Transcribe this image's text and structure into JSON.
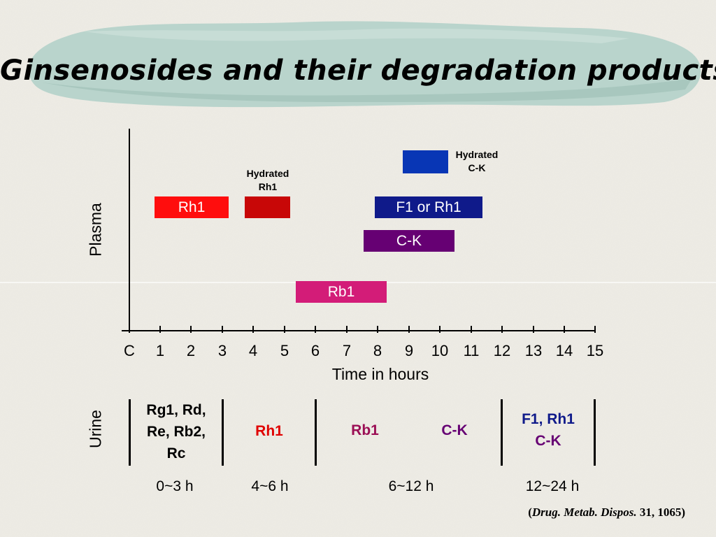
{
  "title": "Ginsenosides and their degradation products",
  "plasma_axis_label": "Plasma",
  "x_axis_label": "Time in hours",
  "x_ticks": [
    "C",
    "1",
    "2",
    "3",
    "4",
    "5",
    "6",
    "7",
    "8",
    "9",
    "10",
    "11",
    "12",
    "13",
    "14",
    "15"
  ],
  "plasma_bars": [
    {
      "label": "Rh1",
      "color": "#ff0d0d"
    },
    {
      "label": "",
      "color": "#c80707"
    },
    {
      "label": "F1 or Rh1",
      "color": "#0f1a8a"
    },
    {
      "label": "C-K",
      "color": "#660073"
    },
    {
      "label": "Rb1",
      "color": "#d31c78"
    },
    {
      "label": "",
      "color": "#0836b5"
    }
  ],
  "annotations": {
    "hydrated_rh1": [
      "Hydrated",
      "Rh1"
    ],
    "hydrated_ck": [
      "Hydrated",
      "C-K"
    ]
  },
  "urine": {
    "axis_label": "Urine",
    "period1": {
      "lines": [
        "Rg1, Rd,",
        "Re, Rb2,",
        "Rc"
      ],
      "color": "#000000"
    },
    "period2": {
      "text": "Rh1",
      "color": "#e00000"
    },
    "period3a": {
      "text": "Rb1",
      "color": "#9b0f55"
    },
    "period3b": {
      "text": "C-K",
      "color": "#660073"
    },
    "period4": {
      "lines": [
        "F1, Rh1",
        "C-K"
      ],
      "colors": [
        "#0f1a8a",
        "#660073"
      ]
    }
  },
  "time_ranges": [
    "0~3 h",
    "4~6 h",
    "6~12 h",
    "12~24 h"
  ],
  "citation": {
    "open": "(",
    "journal": "Drug. Metab. Dispos.",
    "ref": " 31, 1065",
    "close": ")"
  }
}
